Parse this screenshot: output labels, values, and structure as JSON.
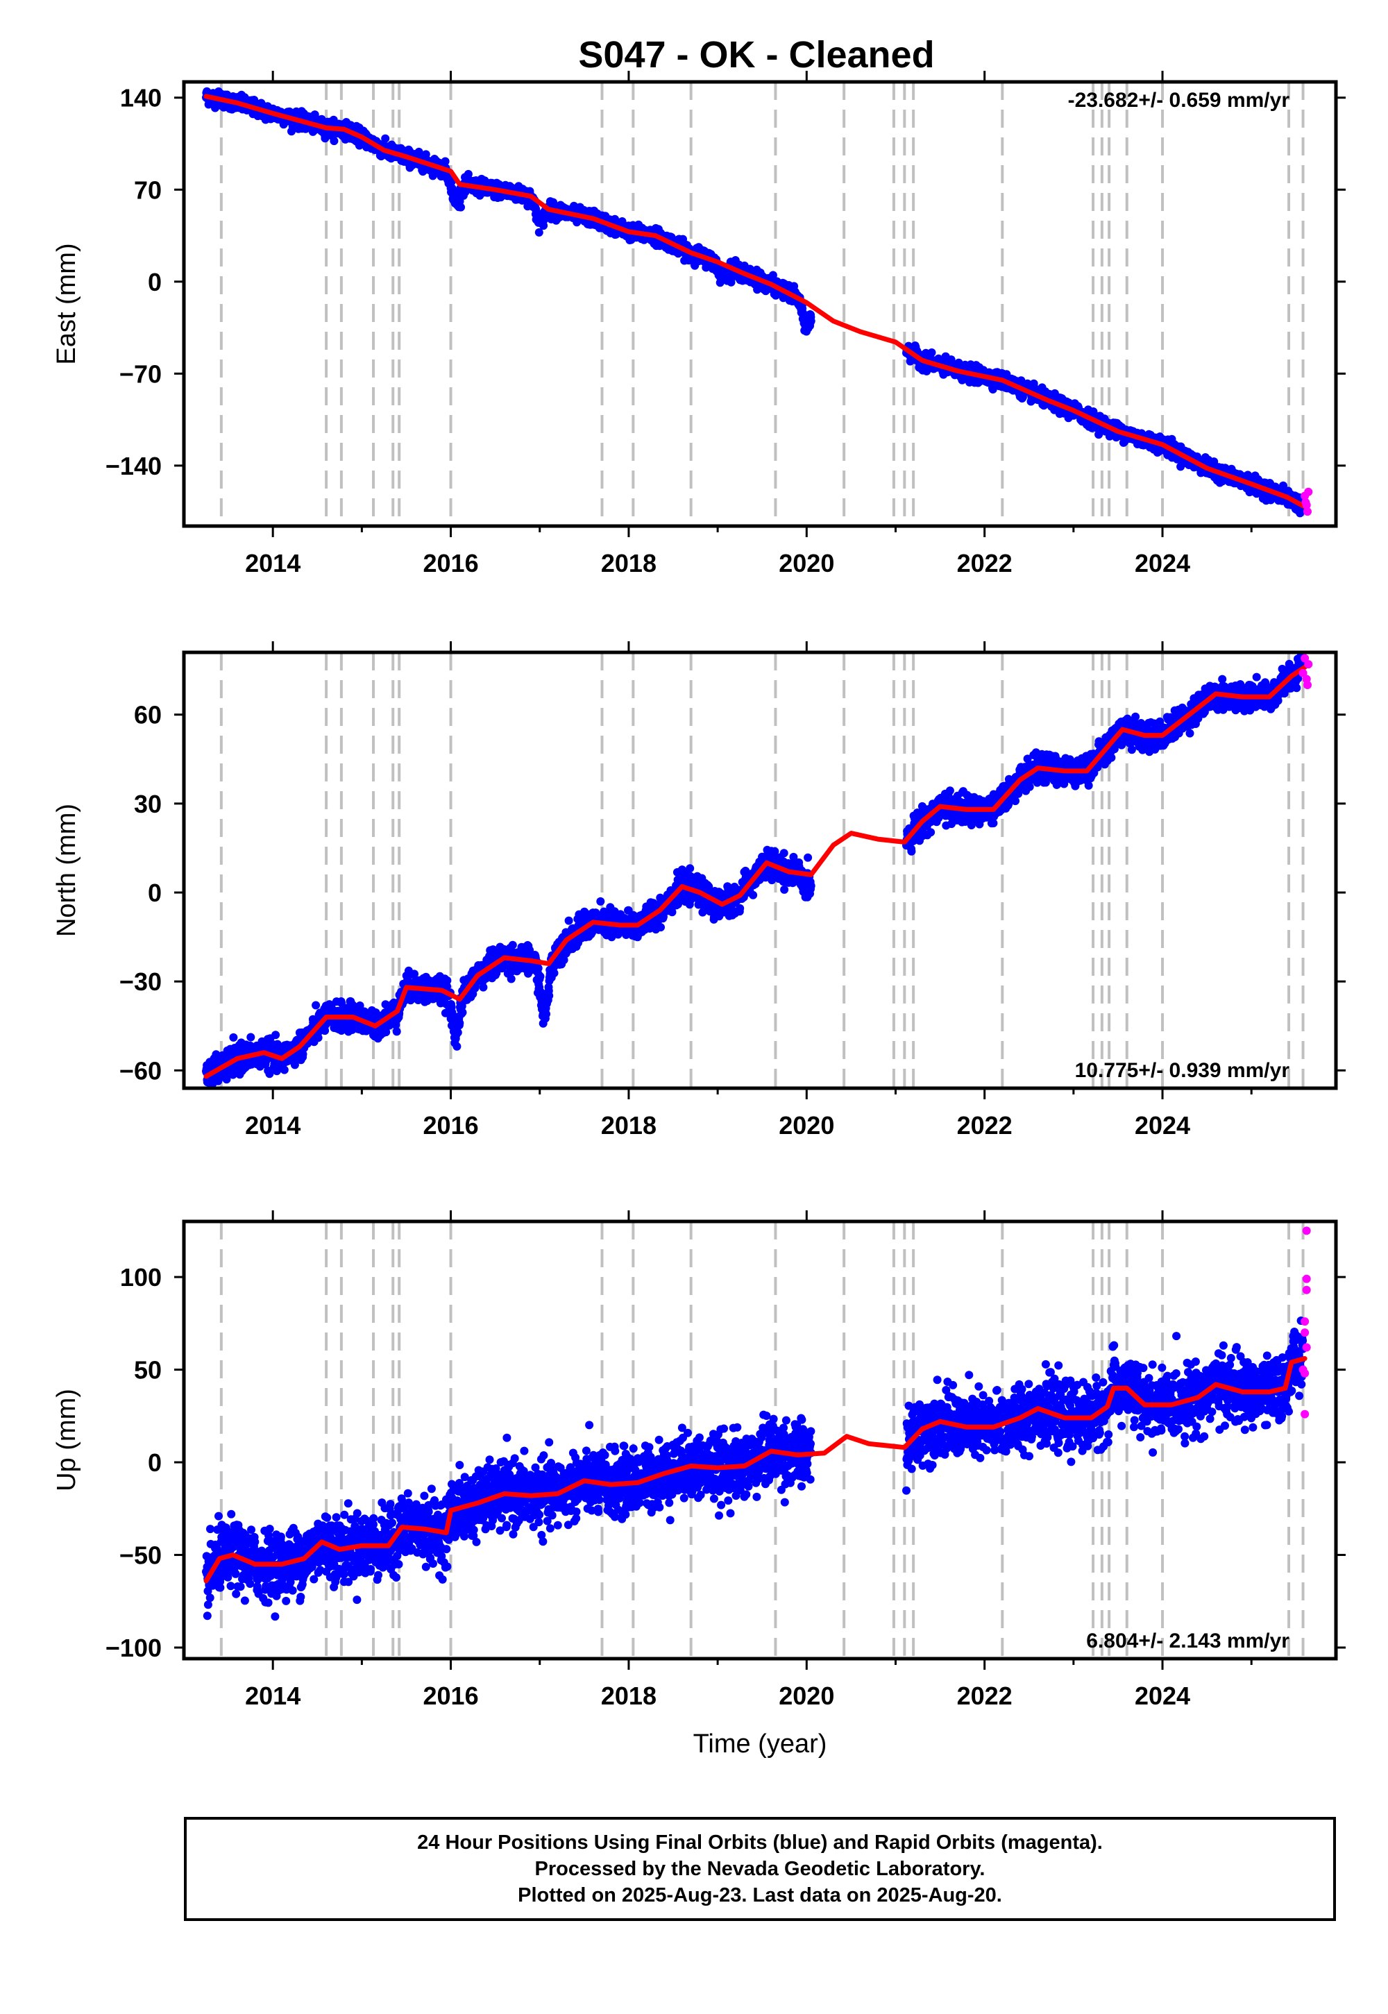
{
  "title": "S047  - OK - Cleaned",
  "footer": {
    "line1": "24 Hour Positions Using Final Orbits (blue) and Rapid Orbits (magenta).",
    "line2": "Processed by the Nevada Geodetic Laboratory.",
    "line3": "Plotted on 2025-Aug-23. Last data on 2025-Aug-20."
  },
  "colors": {
    "final_orbits": "#0000ff",
    "rapid_orbits": "#ff00ff",
    "model_fit": "#ff0000",
    "event_lines": "#c0c0c0"
  },
  "chart_data": [
    {
      "type": "scatter",
      "component": "East",
      "ylabel": "East (mm)",
      "xlabel": "",
      "xlim": [
        2013.0,
        2025.95
      ],
      "ylim": [
        -186,
        152
      ],
      "yticks": [
        140,
        70,
        0,
        -70,
        -140
      ],
      "ytick_labels": [
        "140",
        "70",
        "0",
        "−70",
        "−140"
      ],
      "xticks": [
        2014,
        2016,
        2018,
        2020,
        2022,
        2024
      ],
      "xtick_labels": [
        "2014",
        "2016",
        "2018",
        "2020",
        "2022",
        "2024"
      ],
      "rate_label": "-23.682+/- 0.659 mm/yr",
      "rate_position": "top-right",
      "grid": false,
      "model_fit": [
        [
          2013.25,
          141
        ],
        [
          2013.6,
          136
        ],
        [
          2014.0,
          128
        ],
        [
          2014.6,
          117
        ],
        [
          2014.8,
          116
        ],
        [
          2015.0,
          110
        ],
        [
          2015.25,
          100
        ],
        [
          2015.5,
          95
        ],
        [
          2016.0,
          84
        ],
        [
          2016.1,
          74
        ],
        [
          2016.5,
          70
        ],
        [
          2016.9,
          65
        ],
        [
          2017.1,
          55
        ],
        [
          2017.6,
          48
        ],
        [
          2018.0,
          38
        ],
        [
          2018.3,
          35
        ],
        [
          2018.7,
          22
        ],
        [
          2019.0,
          15
        ],
        [
          2019.3,
          6
        ],
        [
          2019.6,
          -2
        ],
        [
          2020.0,
          -16
        ],
        [
          2020.3,
          -30
        ],
        [
          2020.6,
          -38
        ],
        [
          2021.0,
          -46
        ],
        [
          2021.3,
          -60
        ],
        [
          2021.7,
          -68
        ],
        [
          2022.2,
          -75
        ],
        [
          2022.7,
          -90
        ],
        [
          2023.0,
          -98
        ],
        [
          2023.5,
          -114
        ],
        [
          2024.0,
          -124
        ],
        [
          2024.5,
          -142
        ],
        [
          2025.0,
          -154
        ],
        [
          2025.4,
          -164
        ],
        [
          2025.62,
          -172
        ]
      ],
      "final_orbit_gaps": [
        [
          2020.05,
          2021.12
        ]
      ],
      "final_orbit_excursions": [
        [
          2016.05,
          -18
        ],
        [
          2017.0,
          -15
        ],
        [
          2020.0,
          -18
        ],
        [
          2019.05,
          -8
        ]
      ],
      "scatter_sd_mm": 2.8,
      "rapid_orbit_points": [
        [
          2025.6,
          -163
        ],
        [
          2025.62,
          -170
        ],
        [
          2025.63,
          -175
        ],
        [
          2025.64,
          -160
        ],
        [
          2025.61,
          -168
        ]
      ],
      "event_lines": [
        2013.42,
        2014.6,
        2014.77,
        2015.13,
        2015.35,
        2015.42,
        2016.0,
        2017.7,
        2018.05,
        2018.7,
        2019.65,
        2020.42,
        2020.98,
        2021.1,
        2021.2,
        2022.2,
        2023.22,
        2023.32,
        2023.4,
        2023.6,
        2024.0,
        2025.42,
        2025.58
      ]
    },
    {
      "type": "scatter",
      "component": "North",
      "ylabel": "North (mm)",
      "xlabel": "",
      "xlim": [
        2013.0,
        2025.95
      ],
      "ylim": [
        -66,
        81
      ],
      "yticks": [
        60,
        30,
        0,
        -30,
        -60
      ],
      "ytick_labels": [
        "60",
        "30",
        "0",
        "−30",
        "−60"
      ],
      "xticks": [
        2014,
        2016,
        2018,
        2020,
        2022,
        2024
      ],
      "xtick_labels": [
        "2014",
        "2016",
        "2018",
        "2020",
        "2022",
        "2024"
      ],
      "rate_label": "10.775+/- 0.939 mm/yr",
      "rate_position": "bottom-right",
      "grid": false,
      "model_fit": [
        [
          2013.25,
          -62
        ],
        [
          2013.6,
          -56
        ],
        [
          2013.9,
          -54
        ],
        [
          2014.1,
          -56
        ],
        [
          2014.3,
          -52
        ],
        [
          2014.6,
          -42
        ],
        [
          2014.9,
          -42
        ],
        [
          2015.15,
          -45
        ],
        [
          2015.4,
          -40
        ],
        [
          2015.5,
          -32
        ],
        [
          2015.9,
          -33
        ],
        [
          2016.1,
          -36
        ],
        [
          2016.3,
          -28
        ],
        [
          2016.6,
          -22
        ],
        [
          2016.9,
          -23
        ],
        [
          2017.1,
          -24
        ],
        [
          2017.3,
          -16
        ],
        [
          2017.6,
          -10
        ],
        [
          2017.9,
          -11
        ],
        [
          2018.1,
          -11
        ],
        [
          2018.35,
          -6
        ],
        [
          2018.6,
          2
        ],
        [
          2018.8,
          0
        ],
        [
          2019.05,
          -4
        ],
        [
          2019.25,
          -1
        ],
        [
          2019.55,
          10
        ],
        [
          2019.8,
          7
        ],
        [
          2020.05,
          6
        ],
        [
          2020.3,
          16
        ],
        [
          2020.5,
          20
        ],
        [
          2020.8,
          18
        ],
        [
          2021.1,
          17
        ],
        [
          2021.3,
          24
        ],
        [
          2021.5,
          29
        ],
        [
          2021.8,
          28
        ],
        [
          2022.1,
          28
        ],
        [
          2022.4,
          38
        ],
        [
          2022.6,
          42
        ],
        [
          2022.9,
          41
        ],
        [
          2023.15,
          41
        ],
        [
          2023.35,
          48
        ],
        [
          2023.55,
          55
        ],
        [
          2023.8,
          53
        ],
        [
          2024.0,
          53
        ],
        [
          2024.3,
          60
        ],
        [
          2024.6,
          67
        ],
        [
          2024.9,
          66
        ],
        [
          2025.2,
          66
        ],
        [
          2025.45,
          73
        ],
        [
          2025.6,
          76
        ]
      ],
      "final_orbit_gaps": [
        [
          2020.05,
          2021.12
        ]
      ],
      "final_orbit_excursions": [
        [
          2016.05,
          -11
        ],
        [
          2017.05,
          -17
        ],
        [
          2018.95,
          -2
        ],
        [
          2020.0,
          -4
        ]
      ],
      "scatter_sd_mm": 2.2,
      "rapid_orbit_points": [
        [
          2025.58,
          74
        ],
        [
          2025.6,
          79
        ],
        [
          2025.62,
          72
        ],
        [
          2025.63,
          70
        ],
        [
          2025.64,
          77
        ]
      ],
      "event_lines": [
        2013.42,
        2014.6,
        2014.77,
        2015.13,
        2015.35,
        2015.42,
        2016.0,
        2017.7,
        2018.05,
        2018.7,
        2019.65,
        2020.42,
        2020.98,
        2021.1,
        2021.2,
        2022.2,
        2023.22,
        2023.32,
        2023.4,
        2023.6,
        2024.0,
        2025.42,
        2025.58
      ]
    },
    {
      "type": "scatter",
      "component": "Up",
      "ylabel": "Up (mm)",
      "xlabel": "Time (year)",
      "xlim": [
        2013.0,
        2025.95
      ],
      "ylim": [
        -106,
        130
      ],
      "yticks": [
        100,
        50,
        0,
        -50,
        -100
      ],
      "ytick_labels": [
        "100",
        "50",
        "0",
        "−50",
        "−100"
      ],
      "xticks": [
        2014,
        2016,
        2018,
        2020,
        2022,
        2024
      ],
      "xtick_labels": [
        "2014",
        "2016",
        "2018",
        "2020",
        "2022",
        "2024"
      ],
      "rate_label": "6.804+/- 2.143 mm/yr",
      "rate_position": "bottom-right",
      "grid": false,
      "model_fit": [
        [
          2013.25,
          -64
        ],
        [
          2013.4,
          -52
        ],
        [
          2013.55,
          -50
        ],
        [
          2013.8,
          -55
        ],
        [
          2014.1,
          -55
        ],
        [
          2014.35,
          -52
        ],
        [
          2014.55,
          -43
        ],
        [
          2014.75,
          -47
        ],
        [
          2015.0,
          -45
        ],
        [
          2015.3,
          -45
        ],
        [
          2015.45,
          -35
        ],
        [
          2015.7,
          -36
        ],
        [
          2015.95,
          -38
        ],
        [
          2016.0,
          -26
        ],
        [
          2016.3,
          -22
        ],
        [
          2016.6,
          -17
        ],
        [
          2016.9,
          -18
        ],
        [
          2017.2,
          -17
        ],
        [
          2017.5,
          -10
        ],
        [
          2017.8,
          -12
        ],
        [
          2018.1,
          -11
        ],
        [
          2018.4,
          -6
        ],
        [
          2018.7,
          -2
        ],
        [
          2019.0,
          -3
        ],
        [
          2019.3,
          -2
        ],
        [
          2019.6,
          6
        ],
        [
          2019.9,
          4
        ],
        [
          2020.2,
          5
        ],
        [
          2020.45,
          14
        ],
        [
          2020.7,
          10
        ],
        [
          2021.1,
          8
        ],
        [
          2021.3,
          18
        ],
        [
          2021.5,
          22
        ],
        [
          2021.8,
          19
        ],
        [
          2022.1,
          19
        ],
        [
          2022.4,
          24
        ],
        [
          2022.6,
          29
        ],
        [
          2022.9,
          24
        ],
        [
          2023.2,
          24
        ],
        [
          2023.38,
          30
        ],
        [
          2023.45,
          40
        ],
        [
          2023.6,
          40
        ],
        [
          2023.8,
          31
        ],
        [
          2024.1,
          31
        ],
        [
          2024.4,
          35
        ],
        [
          2024.6,
          42
        ],
        [
          2024.9,
          38
        ],
        [
          2025.2,
          38
        ],
        [
          2025.38,
          40
        ],
        [
          2025.45,
          54
        ],
        [
          2025.6,
          56
        ]
      ],
      "final_orbit_gaps": [
        [
          2020.05,
          2021.12
        ]
      ],
      "final_orbit_excursions": [],
      "scatter_sd_mm": 8.5,
      "rapid_orbit_points": [
        [
          2025.62,
          125
        ],
        [
          2025.62,
          99
        ],
        [
          2025.62,
          93
        ],
        [
          2025.6,
          76
        ],
        [
          2025.6,
          70
        ],
        [
          2025.62,
          62
        ],
        [
          2025.58,
          50
        ],
        [
          2025.6,
          48
        ],
        [
          2025.6,
          26
        ]
      ],
      "event_lines": [
        2013.42,
        2014.6,
        2014.77,
        2015.13,
        2015.35,
        2015.42,
        2016.0,
        2017.7,
        2018.05,
        2018.7,
        2019.65,
        2020.42,
        2020.98,
        2021.1,
        2021.2,
        2022.2,
        2023.22,
        2023.32,
        2023.4,
        2023.6,
        2024.0,
        2025.42,
        2025.58
      ]
    }
  ]
}
